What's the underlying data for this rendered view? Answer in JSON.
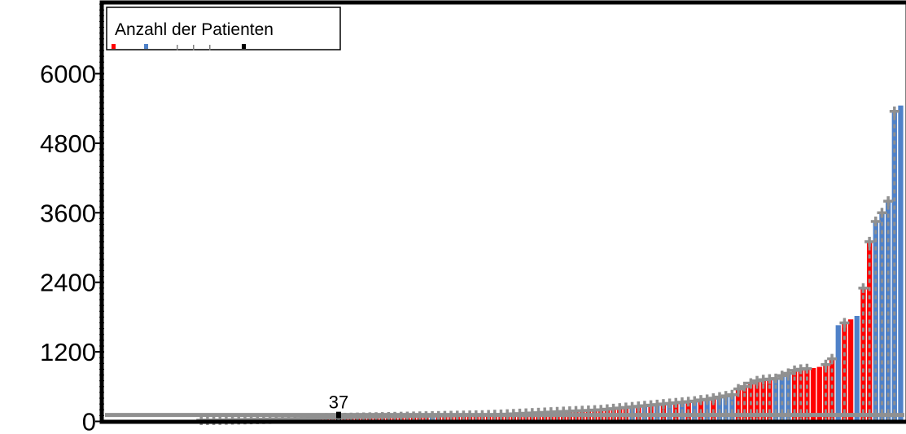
{
  "chart_data": {
    "type": "bar",
    "legend": {
      "title": "Anzahl der Patienten",
      "placement": "top-left",
      "swatch_colors": [
        "#ff0000",
        "#4f81c8",
        "#808080",
        "#808080",
        "#808080",
        "#000000"
      ]
    },
    "y_ticks": [
      "0",
      "1200",
      "2400",
      "3600",
      "4800",
      "6000"
    ],
    "y_tick_values": [
      0,
      1200,
      2400,
      3600,
      4800,
      6000
    ],
    "ylim": [
      0,
      7300
    ],
    "reference_line": {
      "value": 110,
      "color": "#909090"
    },
    "annotation": {
      "text": "37",
      "index": 37
    },
    "colors": {
      "red": "#ff0000",
      "blue": "#4f81c8",
      "gray": "#909090",
      "black": "#000000"
    },
    "bars": [
      {
        "v": 18,
        "c": "red",
        "h": 0
      },
      {
        "v": 20,
        "c": "red",
        "h": 0
      },
      {
        "v": 0,
        "c": "red",
        "h": 0
      },
      {
        "v": 0,
        "c": "red",
        "h": 0
      },
      {
        "v": 0,
        "c": "red",
        "h": 0
      },
      {
        "v": 0,
        "c": "red",
        "h": 0
      },
      {
        "v": 0,
        "c": "red",
        "h": 0
      },
      {
        "v": 0,
        "c": "red",
        "h": 0
      },
      {
        "v": 0,
        "c": "red",
        "h": 0
      },
      {
        "v": 0,
        "c": "red",
        "h": 0
      },
      {
        "v": 0,
        "c": "red",
        "h": 0
      },
      {
        "v": 0,
        "c": "red",
        "h": 0
      },
      {
        "v": 8,
        "c": "red",
        "h": 0
      },
      {
        "v": 10,
        "c": "red",
        "h": 0
      },
      {
        "v": 14,
        "c": "red",
        "h": 0
      },
      {
        "v": 16,
        "c": "red",
        "h": 1
      },
      {
        "v": 20,
        "c": "red",
        "h": 1
      },
      {
        "v": 22,
        "c": "red",
        "h": 1
      },
      {
        "v": 24,
        "c": "red",
        "h": 1
      },
      {
        "v": 26,
        "c": "red",
        "h": 1
      },
      {
        "v": 28,
        "c": "red",
        "h": 1
      },
      {
        "v": 30,
        "c": "red",
        "h": 1
      },
      {
        "v": 32,
        "c": "red",
        "h": 1
      },
      {
        "v": 34,
        "c": "red",
        "h": 1
      },
      {
        "v": 36,
        "c": "red",
        "h": 1
      },
      {
        "v": 38,
        "c": "red",
        "h": 1
      },
      {
        "v": 40,
        "c": "red",
        "h": 1
      },
      {
        "v": 42,
        "c": "red",
        "h": 1
      },
      {
        "v": 44,
        "c": "red",
        "h": 1
      },
      {
        "v": 46,
        "c": "red",
        "h": 1
      },
      {
        "v": 48,
        "c": "red",
        "h": 1
      },
      {
        "v": 50,
        "c": "red",
        "h": 1
      },
      {
        "v": 52,
        "c": "red",
        "h": 1
      },
      {
        "v": 54,
        "c": "red",
        "h": 1
      },
      {
        "v": 56,
        "c": "red",
        "h": 1
      },
      {
        "v": 58,
        "c": "red",
        "h": 1
      },
      {
        "v": 60,
        "c": "red",
        "h": 1
      },
      {
        "v": 62,
        "c": "black",
        "h": 1
      },
      {
        "v": 64,
        "c": "red",
        "h": 1
      },
      {
        "v": 66,
        "c": "red",
        "h": 1
      },
      {
        "v": 68,
        "c": "red",
        "h": 1
      },
      {
        "v": 70,
        "c": "red",
        "h": 1
      },
      {
        "v": 72,
        "c": "red",
        "h": 1
      },
      {
        "v": 74,
        "c": "red",
        "h": 1
      },
      {
        "v": 76,
        "c": "red",
        "h": 1
      },
      {
        "v": 78,
        "c": "red",
        "h": 1
      },
      {
        "v": 80,
        "c": "red",
        "h": 1
      },
      {
        "v": 82,
        "c": "red",
        "h": 1
      },
      {
        "v": 84,
        "c": "red",
        "h": 1
      },
      {
        "v": 86,
        "c": "red",
        "h": 1
      },
      {
        "v": 88,
        "c": "red",
        "h": 1
      },
      {
        "v": 90,
        "c": "red",
        "h": 1
      },
      {
        "v": 92,
        "c": "blue",
        "h": 1
      },
      {
        "v": 94,
        "c": "red",
        "h": 1
      },
      {
        "v": 96,
        "c": "red",
        "h": 1
      },
      {
        "v": 98,
        "c": "red",
        "h": 1
      },
      {
        "v": 100,
        "c": "red",
        "h": 1
      },
      {
        "v": 102,
        "c": "red",
        "h": 1
      },
      {
        "v": 104,
        "c": "red",
        "h": 1
      },
      {
        "v": 106,
        "c": "red",
        "h": 1
      },
      {
        "v": 108,
        "c": "red",
        "h": 1
      },
      {
        "v": 112,
        "c": "red",
        "h": 1
      },
      {
        "v": 116,
        "c": "red",
        "h": 1
      },
      {
        "v": 120,
        "c": "red",
        "h": 1
      },
      {
        "v": 125,
        "c": "red",
        "h": 1
      },
      {
        "v": 130,
        "c": "red",
        "h": 1
      },
      {
        "v": 135,
        "c": "red",
        "h": 1
      },
      {
        "v": 140,
        "c": "red",
        "h": 1
      },
      {
        "v": 145,
        "c": "red",
        "h": 1
      },
      {
        "v": 150,
        "c": "red",
        "h": 1
      },
      {
        "v": 155,
        "c": "red",
        "h": 1
      },
      {
        "v": 160,
        "c": "red",
        "h": 1
      },
      {
        "v": 165,
        "c": "red",
        "h": 1
      },
      {
        "v": 170,
        "c": "red",
        "h": 1
      },
      {
        "v": 175,
        "c": "red",
        "h": 1
      },
      {
        "v": 180,
        "c": "red",
        "h": 1
      },
      {
        "v": 185,
        "c": "red",
        "h": 1
      },
      {
        "v": 190,
        "c": "red",
        "h": 1
      },
      {
        "v": 195,
        "c": "red",
        "h": 1
      },
      {
        "v": 200,
        "c": "red",
        "h": 1
      },
      {
        "v": 210,
        "c": "red",
        "h": 1
      },
      {
        "v": 220,
        "c": "red",
        "h": 1
      },
      {
        "v": 230,
        "c": "red",
        "h": 1
      },
      {
        "v": 240,
        "c": "red",
        "h": 1
      },
      {
        "v": 250,
        "c": "blue",
        "h": 1
      },
      {
        "v": 260,
        "c": "red",
        "h": 1
      },
      {
        "v": 270,
        "c": "blue",
        "h": 1
      },
      {
        "v": 280,
        "c": "red",
        "h": 1
      },
      {
        "v": 290,
        "c": "blue",
        "h": 1
      },
      {
        "v": 300,
        "c": "red",
        "h": 1
      },
      {
        "v": 310,
        "c": "blue",
        "h": 1
      },
      {
        "v": 320,
        "c": "red",
        "h": 1
      },
      {
        "v": 330,
        "c": "blue",
        "h": 1
      },
      {
        "v": 340,
        "c": "red",
        "h": 1
      },
      {
        "v": 350,
        "c": "blue",
        "h": 1
      },
      {
        "v": 370,
        "c": "red",
        "h": 1
      },
      {
        "v": 380,
        "c": "blue",
        "h": 1
      },
      {
        "v": 400,
        "c": "red",
        "h": 1
      },
      {
        "v": 420,
        "c": "blue",
        "h": 1
      },
      {
        "v": 440,
        "c": "blue",
        "h": 1
      },
      {
        "v": 460,
        "c": "blue",
        "h": 1
      },
      {
        "v": 560,
        "c": "red",
        "h": 1
      },
      {
        "v": 600,
        "c": "red",
        "h": 1
      },
      {
        "v": 660,
        "c": "red",
        "h": 1
      },
      {
        "v": 700,
        "c": "red",
        "h": 1
      },
      {
        "v": 720,
        "c": "red",
        "h": 1
      },
      {
        "v": 730,
        "c": "red",
        "h": 1
      },
      {
        "v": 740,
        "c": "blue",
        "h": 1
      },
      {
        "v": 790,
        "c": "blue",
        "h": 1
      },
      {
        "v": 830,
        "c": "blue",
        "h": 1
      },
      {
        "v": 880,
        "c": "red",
        "h": 1
      },
      {
        "v": 900,
        "c": "red",
        "h": 1
      },
      {
        "v": 910,
        "c": "red",
        "h": 1
      },
      {
        "v": 920,
        "c": "red",
        "h": 0
      },
      {
        "v": 940,
        "c": "red",
        "h": 0
      },
      {
        "v": 980,
        "c": "red",
        "h": 1
      },
      {
        "v": 1080,
        "c": "red",
        "h": 1
      },
      {
        "v": 1660,
        "c": "blue",
        "h": 0
      },
      {
        "v": 1700,
        "c": "red",
        "h": 1
      },
      {
        "v": 1760,
        "c": "red",
        "h": 0
      },
      {
        "v": 1820,
        "c": "blue",
        "h": 0
      },
      {
        "v": 2300,
        "c": "red",
        "h": 1
      },
      {
        "v": 3100,
        "c": "red",
        "h": 1
      },
      {
        "v": 3450,
        "c": "blue",
        "h": 1
      },
      {
        "v": 3600,
        "c": "blue",
        "h": 1
      },
      {
        "v": 3800,
        "c": "blue",
        "h": 1
      },
      {
        "v": 5350,
        "c": "blue",
        "h": 1
      },
      {
        "v": 5450,
        "c": "blue",
        "h": 0
      }
    ]
  }
}
